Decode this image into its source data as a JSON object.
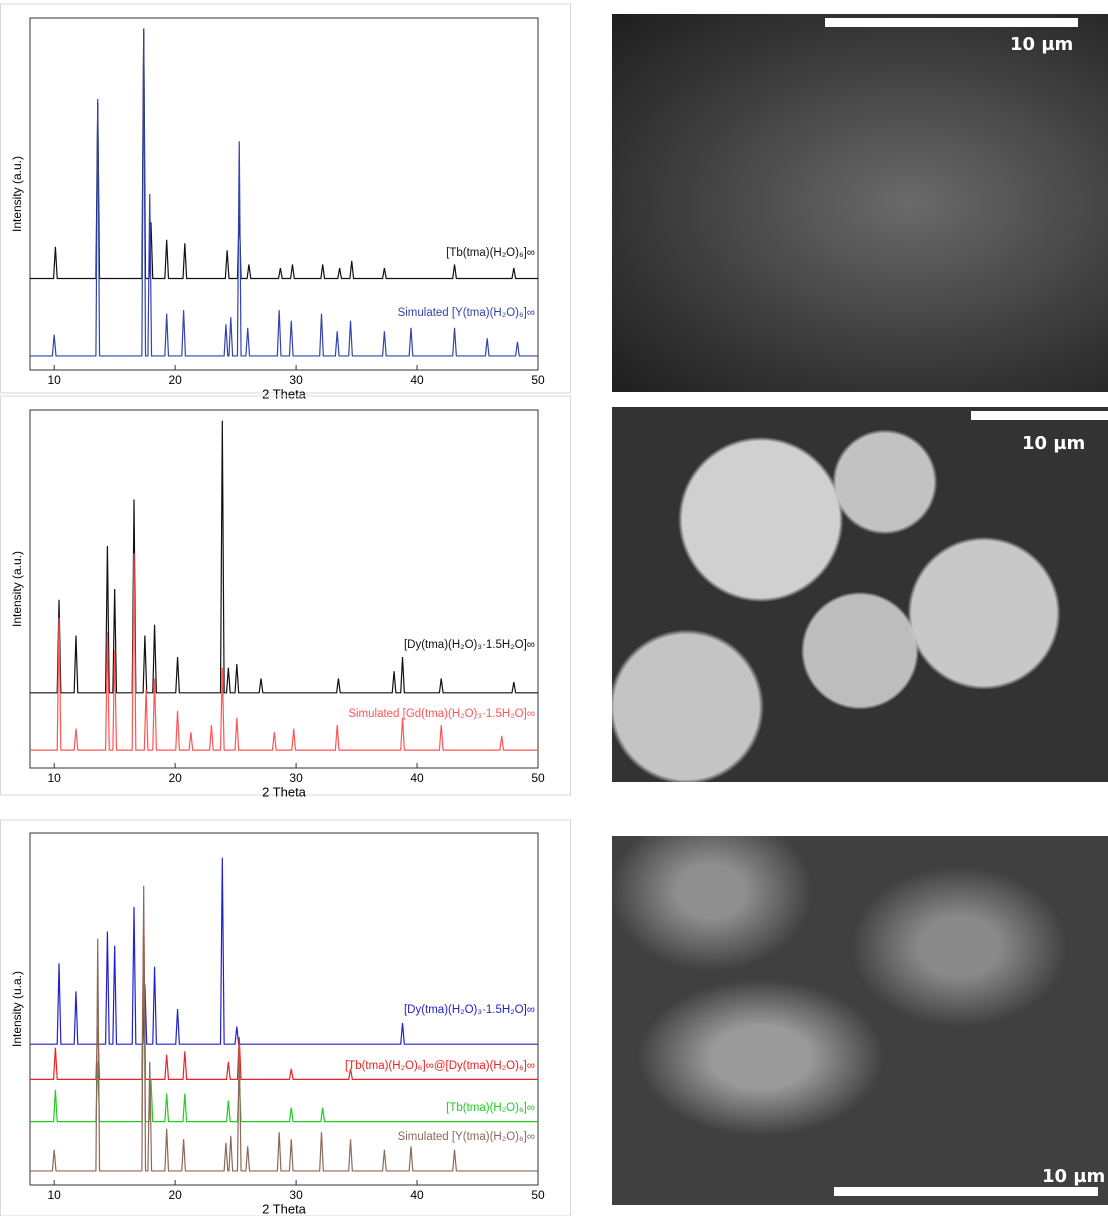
{
  "chart_data": [
    {
      "type": "line",
      "x_label": "2 Theta",
      "y_label": "Intensity (a.u.)",
      "xlim": [
        8,
        50
      ],
      "xticks": [
        10,
        20,
        30,
        40,
        50
      ],
      "ylim": [
        0,
        100
      ],
      "series": [
        {
          "name": "[Tb(tma)(H₂O)₆]∞",
          "color": "#111111",
          "x": [
            8,
            9.95,
            10.1,
            10.25,
            13.45,
            13.6,
            13.75,
            17.25,
            17.4,
            17.55,
            17.85,
            18.0,
            18.15,
            19.15,
            19.3,
            19.45,
            20.65,
            20.8,
            20.95,
            24.15,
            24.3,
            24.45,
            25.15,
            25.3,
            25.45,
            25.95,
            26.1,
            26.25,
            28.55,
            28.7,
            28.85,
            29.55,
            29.7,
            29.85,
            32.05,
            32.2,
            32.35,
            33.45,
            33.6,
            33.75,
            34.45,
            34.6,
            34.75,
            37.15,
            37.3,
            37.45,
            42.95,
            43.1,
            43.25,
            47.85,
            48.0,
            48.15,
            50
          ],
          "values": [
            26,
            26,
            35,
            26,
            26,
            76,
            26,
            26,
            97,
            26,
            26,
            42,
            26,
            26,
            37,
            26,
            26,
            36,
            26,
            26,
            34,
            26,
            26,
            45,
            26,
            26,
            30,
            26,
            26,
            29,
            26,
            26,
            30,
            26,
            26,
            30,
            26,
            26,
            29,
            26,
            26,
            31,
            26,
            26,
            29,
            26,
            26,
            30,
            26,
            26,
            29,
            26,
            26
          ]
        },
        {
          "name": "Simulated [Y(tma)(H₂O)₆]∞",
          "color": "#3344aa",
          "x": [
            8,
            9.85,
            10.0,
            10.15,
            13.45,
            13.6,
            13.75,
            17.25,
            17.4,
            17.55,
            17.75,
            17.9,
            18.05,
            19.15,
            19.3,
            19.45,
            20.55,
            20.7,
            20.85,
            24.05,
            24.2,
            24.35,
            24.45,
            24.6,
            24.75,
            25.15,
            25.3,
            25.45,
            25.85,
            26.0,
            26.15,
            28.45,
            28.6,
            28.75,
            29.45,
            29.6,
            29.75,
            31.95,
            32.1,
            32.25,
            33.25,
            33.4,
            33.55,
            34.35,
            34.5,
            34.65,
            37.15,
            37.3,
            37.45,
            39.35,
            39.5,
            39.65,
            42.95,
            43.1,
            43.25,
            45.65,
            45.8,
            45.95,
            48.15,
            48.3,
            48.45,
            50
          ],
          "values": [
            4,
            4,
            10,
            4,
            4,
            77,
            4,
            4,
            97,
            4,
            4,
            50,
            4,
            4,
            16,
            4,
            4,
            17,
            4,
            4,
            13,
            4,
            4,
            15,
            4,
            4,
            65,
            4,
            4,
            12,
            4,
            4,
            17,
            4,
            4,
            14,
            4,
            4,
            16,
            4,
            4,
            11,
            4,
            4,
            14,
            4,
            4,
            11,
            4,
            4,
            12,
            4,
            4,
            12,
            4,
            4,
            9,
            4,
            4,
            8,
            4,
            4
          ]
        }
      ]
    },
    {
      "type": "line",
      "x_label": "2 Theta",
      "y_label": "Intensity (a.u.)",
      "xlim": [
        8,
        50
      ],
      "xticks": [
        10,
        20,
        30,
        40,
        50
      ],
      "ylim": [
        0,
        100
      ],
      "series": [
        {
          "name": "[Dy(tma)(H₂O)₃·1.5H₂O]∞",
          "color": "#111111",
          "x": [
            8,
            10.25,
            10.4,
            10.55,
            11.65,
            11.8,
            11.95,
            14.25,
            14.4,
            14.55,
            14.85,
            15.0,
            15.15,
            16.45,
            16.6,
            16.75,
            17.35,
            17.5,
            17.65,
            18.15,
            18.3,
            18.45,
            20.05,
            20.2,
            20.35,
            23.75,
            23.9,
            24.05,
            24.25,
            24.4,
            24.55,
            24.95,
            25.1,
            25.25,
            26.95,
            27.1,
            27.25,
            33.35,
            33.5,
            33.65,
            37.95,
            38.1,
            38.25,
            38.65,
            38.8,
            38.95,
            41.85,
            42.0,
            42.15,
            47.85,
            48.0,
            48.15,
            50
          ],
          "values": [
            21,
            21,
            47,
            21,
            21,
            37,
            21,
            21,
            62,
            21,
            21,
            50,
            21,
            21,
            75,
            21,
            21,
            37,
            21,
            21,
            40,
            21,
            21,
            31,
            21,
            21,
            97,
            21,
            21,
            28,
            21,
            21,
            29,
            21,
            21,
            25,
            21,
            21,
            25,
            21,
            21,
            27,
            21,
            21,
            31,
            21,
            21,
            25,
            21,
            21,
            24,
            21,
            21
          ]
        },
        {
          "name": "Simulated [Gd(tma)(H₂O)₃·1.5H₂O]∞",
          "color": "#ff5555",
          "x": [
            8,
            10.25,
            10.4,
            10.55,
            11.65,
            11.8,
            11.95,
            14.25,
            14.4,
            14.55,
            14.85,
            15.0,
            15.15,
            16.45,
            16.6,
            16.75,
            17.45,
            17.6,
            17.75,
            18.15,
            18.3,
            18.45,
            20.05,
            20.2,
            20.35,
            21.15,
            21.3,
            21.45,
            22.85,
            23.0,
            23.15,
            23.75,
            23.9,
            24.05,
            24.95,
            25.1,
            25.25,
            28.05,
            28.2,
            28.35,
            29.65,
            29.8,
            29.95,
            33.25,
            33.4,
            33.55,
            38.65,
            38.8,
            38.95,
            41.85,
            42.0,
            42.15,
            46.85,
            47.0,
            47.15,
            50
          ],
          "values": [
            5,
            5,
            42,
            5,
            5,
            11,
            5,
            5,
            38,
            5,
            5,
            33,
            5,
            5,
            60,
            5,
            5,
            22,
            5,
            5,
            25,
            5,
            5,
            16,
            5,
            5,
            10,
            5,
            5,
            12,
            5,
            5,
            28,
            5,
            5,
            14,
            5,
            5,
            10,
            5,
            5,
            11,
            5,
            5,
            12,
            5,
            5,
            14,
            5,
            5,
            12,
            5,
            5,
            9,
            5,
            5
          ]
        }
      ]
    },
    {
      "type": "line",
      "x_label": "2 Theta",
      "y_label": "Intensity (u.a.)",
      "xlim": [
        8,
        50
      ],
      "xticks": [
        10,
        20,
        30,
        40,
        50
      ],
      "ylim": [
        0,
        100
      ],
      "series": [
        {
          "name": "[Dy(tma)(H₂O)₃·1.5H₂O]∞",
          "color": "#2222cc",
          "x": [
            8,
            10.25,
            10.4,
            10.55,
            11.65,
            11.8,
            11.95,
            14.25,
            14.4,
            14.55,
            14.85,
            15.0,
            15.15,
            16.45,
            16.6,
            16.75,
            17.35,
            17.5,
            17.65,
            18.15,
            18.3,
            18.45,
            20.05,
            20.2,
            20.35,
            23.75,
            23.9,
            24.05,
            24.95,
            25.1,
            25.25,
            38.65,
            38.8,
            38.95,
            50
          ],
          "values": [
            40,
            40,
            63,
            40,
            40,
            55,
            40,
            40,
            72,
            40,
            40,
            68,
            40,
            40,
            79,
            40,
            40,
            57,
            40,
            40,
            62,
            40,
            40,
            50,
            40,
            40,
            93,
            40,
            40,
            45,
            40,
            40,
            46,
            40,
            40
          ]
        },
        {
          "name": "[Tb(tma)(H₂O)₆]∞@[Dy(tma)(H₂O)₆]∞",
          "color": "#ee2222",
          "x": [
            8,
            9.95,
            10.1,
            10.25,
            13.45,
            13.6,
            13.75,
            17.25,
            17.4,
            17.55,
            19.15,
            19.3,
            19.45,
            20.65,
            20.8,
            20.95,
            24.25,
            24.4,
            24.55,
            25.15,
            25.3,
            25.45,
            29.45,
            29.6,
            29.75,
            34.35,
            34.5,
            34.65,
            50
          ],
          "values": [
            30,
            30,
            39,
            30,
            30,
            45,
            30,
            30,
            77,
            30,
            30,
            37,
            30,
            30,
            38,
            30,
            30,
            35,
            30,
            30,
            42,
            30,
            30,
            33,
            30,
            30,
            33,
            30,
            30
          ]
        },
        {
          "name": "[Tb(tma)(H₂O)₆]∞",
          "color": "#22cc22",
          "x": [
            8,
            9.95,
            10.1,
            10.25,
            13.45,
            13.6,
            13.75,
            17.25,
            17.4,
            17.55,
            17.85,
            18.0,
            18.15,
            19.15,
            19.3,
            19.45,
            20.65,
            20.8,
            20.95,
            24.25,
            24.4,
            24.55,
            25.15,
            25.3,
            25.45,
            29.45,
            29.6,
            29.75,
            32.05,
            32.2,
            32.35,
            50
          ],
          "values": [
            18,
            18,
            27,
            18,
            18,
            35,
            18,
            18,
            70,
            18,
            18,
            30,
            18,
            18,
            26,
            18,
            18,
            26,
            18,
            18,
            24,
            18,
            18,
            30,
            18,
            18,
            22,
            18,
            18,
            22,
            18,
            18
          ]
        },
        {
          "name": "Simulated [Y(tma)(H₂O)₆]∞",
          "color": "#8b6a5a",
          "x": [
            8,
            9.85,
            10.0,
            10.15,
            13.45,
            13.6,
            13.75,
            17.25,
            17.4,
            17.55,
            17.75,
            17.9,
            18.05,
            19.15,
            19.3,
            19.45,
            20.55,
            20.7,
            20.85,
            24.05,
            24.2,
            24.35,
            24.45,
            24.6,
            24.75,
            25.15,
            25.3,
            25.45,
            25.85,
            26.0,
            26.15,
            28.45,
            28.6,
            28.75,
            29.45,
            29.6,
            29.75,
            31.95,
            32.1,
            32.25,
            34.35,
            34.5,
            34.65,
            37.15,
            37.3,
            37.45,
            39.35,
            39.5,
            39.65,
            42.95,
            43.1,
            43.25,
            50
          ],
          "values": [
            4,
            4,
            10,
            4,
            4,
            70,
            4,
            4,
            85,
            4,
            4,
            35,
            4,
            4,
            16,
            4,
            4,
            13,
            4,
            4,
            12,
            4,
            4,
            14,
            4,
            4,
            40,
            4,
            4,
            11,
            4,
            4,
            15,
            4,
            4,
            13,
            4,
            4,
            15,
            4,
            4,
            13,
            4,
            4,
            10,
            4,
            4,
            11,
            4,
            4,
            10,
            4,
            4
          ]
        }
      ]
    }
  ],
  "images": [
    {
      "scale_label": "10 µm"
    },
    {
      "scale_label": "10 µm"
    },
    {
      "scale_label": "10 µm"
    }
  ]
}
